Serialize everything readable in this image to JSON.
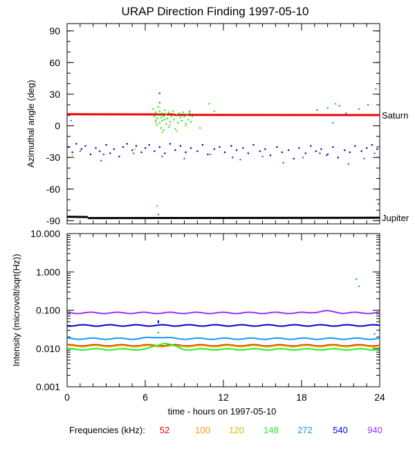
{
  "chart_data": {
    "title": "URAP Direction Finding  1997-05-10",
    "xlabel": "time - hours on 1997-05-10",
    "xlim": [
      0,
      24
    ],
    "xticks": [
      "0",
      "6",
      "12",
      "18",
      "24"
    ],
    "frequencies_label": "Frequencies (kHz):",
    "frequencies": [
      {
        "label": "52",
        "color": "#ee0000"
      },
      {
        "label": "100",
        "color": "#ff9900"
      },
      {
        "label": "120",
        "color": "#ddbb00"
      },
      {
        "label": "148",
        "color": "#22ee22"
      },
      {
        "label": "272",
        "color": "#1199ff"
      },
      {
        "label": "540",
        "color": "#0000cc"
      },
      {
        "label": "940",
        "color": "#9933ee"
      }
    ],
    "panels": [
      {
        "type": "scatter",
        "ylabel": "Azimuthal angle (deg)",
        "ylim": [
          -93,
          97
        ],
        "yticks": [
          "90",
          "60",
          "30",
          "0",
          "-30",
          "-60",
          "-90"
        ],
        "reference_lines": [
          {
            "label": "Saturn",
            "color": "#ee0000",
            "segments": [
              [
                0,
                11,
                8.2,
                10.8
              ],
              [
                8.2,
                10.4,
                24,
                10.2
              ]
            ]
          },
          {
            "label": "Jupiter",
            "color": "#000000",
            "segments": [
              [
                0,
                -86.3,
                1.6,
                -86.5
              ],
              [
                1.6,
                -87.5,
                24,
                -87.2
              ]
            ]
          }
        ],
        "series": [
          {
            "frequency": "540",
            "color": "#0000cc",
            "points": [
              [
                0.1,
                -20
              ],
              [
                0.4,
                -25
              ],
              [
                0.7,
                -17
              ],
              [
                1.1,
                -22
              ],
              [
                1.4,
                -19
              ],
              [
                1.8,
                -27
              ],
              [
                2.2,
                -21
              ],
              [
                2.5,
                -24
              ],
              [
                3.0,
                -18
              ],
              [
                3.3,
                -26
              ],
              [
                3.6,
                -22
              ],
              [
                4.0,
                -29
              ],
              [
                4.3,
                -20
              ],
              [
                4.6,
                -17
              ],
              [
                5.0,
                -23
              ],
              [
                5.3,
                -19
              ],
              [
                5.7,
                -25
              ],
              [
                6.0,
                -21
              ],
              [
                6.3,
                -18
              ],
              [
                6.7,
                -24
              ],
              [
                7.1,
                -20
              ],
              [
                7.5,
                -26
              ],
              [
                7.9,
                -17
              ],
              [
                8.3,
                -23
              ],
              [
                8.7,
                -19
              ],
              [
                9.1,
                -25
              ],
              [
                9.5,
                -21
              ],
              [
                10.0,
                -24
              ],
              [
                10.4,
                -18
              ],
              [
                10.8,
                -27
              ],
              [
                11.3,
                -22
              ],
              [
                11.7,
                -20
              ],
              [
                12.1,
                -25
              ],
              [
                12.6,
                -19
              ],
              [
                13.0,
                -23
              ],
              [
                13.5,
                -21
              ],
              [
                13.9,
                -26
              ],
              [
                14.3,
                -18
              ],
              [
                14.8,
                -24
              ],
              [
                15.2,
                -22
              ],
              [
                15.6,
                -28
              ],
              [
                16.1,
                -20
              ],
              [
                16.5,
                -25
              ],
              [
                17.0,
                -23
              ],
              [
                17.4,
                -31
              ],
              [
                17.8,
                -21
              ],
              [
                18.3,
                -26
              ],
              [
                18.7,
                -19
              ],
              [
                19.1,
                -24
              ],
              [
                19.5,
                -22
              ],
              [
                20.0,
                -27
              ],
              [
                20.4,
                -20
              ],
              [
                20.8,
                -30
              ],
              [
                21.3,
                -23
              ],
              [
                21.7,
                -25
              ],
              [
                22.1,
                -19
              ],
              [
                22.6,
                -24
              ],
              [
                23.0,
                -21
              ],
              [
                23.4,
                -18
              ],
              [
                23.8,
                -22
              ]
            ]
          },
          {
            "frequency": "940",
            "color": "#9933ee",
            "points": [
              [
                1.0,
                -24
              ],
              [
                2.6,
                -33
              ],
              [
                5.1,
                -26
              ],
              [
                7.3,
                -29
              ],
              [
                9.0,
                -31
              ],
              [
                11.0,
                -27
              ],
              [
                13.3,
                -32
              ],
              [
                15.0,
                -29
              ],
              [
                16.6,
                -35
              ],
              [
                18.1,
                -30
              ],
              [
                19.9,
                -28
              ],
              [
                21.6,
                -36
              ],
              [
                22.8,
                -31
              ],
              [
                23.6,
                -26
              ],
              [
                7.0,
                -84
              ],
              [
                23.9,
                -74
              ]
            ]
          },
          {
            "frequency": "272",
            "color": "#1199ff",
            "points": [
              [
                0.3,
                5
              ],
              [
                7.1,
                22
              ],
              [
                9.4,
                14
              ],
              [
                19.2,
                15
              ],
              [
                20.0,
                17
              ],
              [
                20.9,
                19
              ],
              [
                21.4,
                12
              ],
              [
                22.4,
                16
              ],
              [
                23.1,
                20
              ],
              [
                23.7,
                35
              ],
              [
                20.4,
                3
              ]
            ]
          },
          {
            "frequency": "148",
            "color": "#22ee22",
            "points": [
              [
                6.6,
                16
              ],
              [
                6.7,
                9
              ],
              [
                6.8,
                5
              ],
              [
                6.8,
                13
              ],
              [
                6.9,
                1
              ],
              [
                6.9,
                7
              ],
              [
                7.0,
                18
              ],
              [
                7.0,
                10
              ],
              [
                7.1,
                3
              ],
              [
                7.1,
                14
              ],
              [
                7.2,
                -2
              ],
              [
                7.2,
                8
              ],
              [
                7.3,
                12
              ],
              [
                7.3,
                5
              ],
              [
                7.4,
                -4
              ],
              [
                7.4,
                9
              ],
              [
                7.5,
                15
              ],
              [
                7.5,
                6
              ],
              [
                7.6,
                2
              ],
              [
                7.6,
                11
              ],
              [
                7.7,
                7
              ],
              [
                7.8,
                13
              ],
              [
                7.8,
                -1
              ],
              [
                7.9,
                4
              ],
              [
                8.0,
                9
              ],
              [
                8.1,
                14
              ],
              [
                8.2,
                6
              ],
              [
                8.3,
                -3
              ],
              [
                8.4,
                11
              ],
              [
                8.5,
                3
              ],
              [
                8.6,
                12
              ],
              [
                8.7,
                8
              ],
              [
                8.8,
                5
              ],
              [
                8.9,
                13
              ],
              [
                9.0,
                9
              ],
              [
                9.1,
                2
              ],
              [
                9.2,
                10
              ],
              [
                9.3,
                6
              ],
              [
                9.4,
                12
              ],
              [
                9.5,
                4
              ],
              [
                9.6,
                9
              ],
              [
                10.2,
                -2
              ],
              [
                10.9,
                21
              ],
              [
                11.3,
                14
              ],
              [
                6.9,
                -76
              ],
              [
                20.6,
                21
              ]
            ]
          },
          {
            "frequency": "120",
            "color": "#ddbb00",
            "points": [
              [
                6.8,
                3
              ],
              [
                7.3,
                -6
              ],
              [
                7.9,
                1
              ],
              [
                8.4,
                -5
              ],
              [
                9.1,
                0
              ],
              [
                0.4,
                -28
              ],
              [
                5.2,
                -22
              ]
            ]
          },
          {
            "frequency": "52",
            "color": "#ee0000",
            "points": [
              [
                2.8,
                -27
              ],
              [
                7.1,
                31
              ],
              [
                12.7,
                -30
              ],
              [
                19.4,
                -26
              ]
            ]
          }
        ]
      },
      {
        "type": "line",
        "scale": "log",
        "ylabel": "Intensity (microvolt/sqrt(Hz))",
        "ylim": [
          0.001,
          10
        ],
        "yticks": [
          "10.000",
          "1.000",
          "0.100",
          "0.010",
          "0.001"
        ],
        "series": [
          {
            "frequency": "940",
            "color": "#9933ee",
            "level": 0.085,
            "bump": {
              "x": 19.8,
              "value": 0.095
            }
          },
          {
            "frequency": "540",
            "color": "#0000cc",
            "level": 0.04
          },
          {
            "frequency": "272",
            "color": "#1199ff",
            "level": 0.018,
            "bump": {
              "x": 7.0,
              "value": 0.02
            }
          },
          {
            "frequency": "100",
            "color": "#ff9900",
            "level": 0.012
          },
          {
            "frequency": "52",
            "color": "#ee0000",
            "level": 0.012
          },
          {
            "frequency": "120",
            "color": "#ddbb00",
            "level": 0.0115
          },
          {
            "frequency": "148",
            "color": "#22ee22",
            "level": 0.0095,
            "bump": {
              "x": 7.5,
              "value": 0.014
            }
          }
        ],
        "points": [
          {
            "frequency": "272",
            "color": "#1199ff",
            "values": [
              [
                22.2,
                0.65
              ],
              [
                22.4,
                0.42
              ],
              [
                7.0,
                0.026
              ],
              [
                23.6,
                0.024
              ]
            ]
          },
          {
            "frequency": "540",
            "color": "#0000cc",
            "values": [
              [
                7.0,
                0.048
              ],
              [
                7.0,
                0.052
              ]
            ]
          }
        ]
      }
    ]
  }
}
